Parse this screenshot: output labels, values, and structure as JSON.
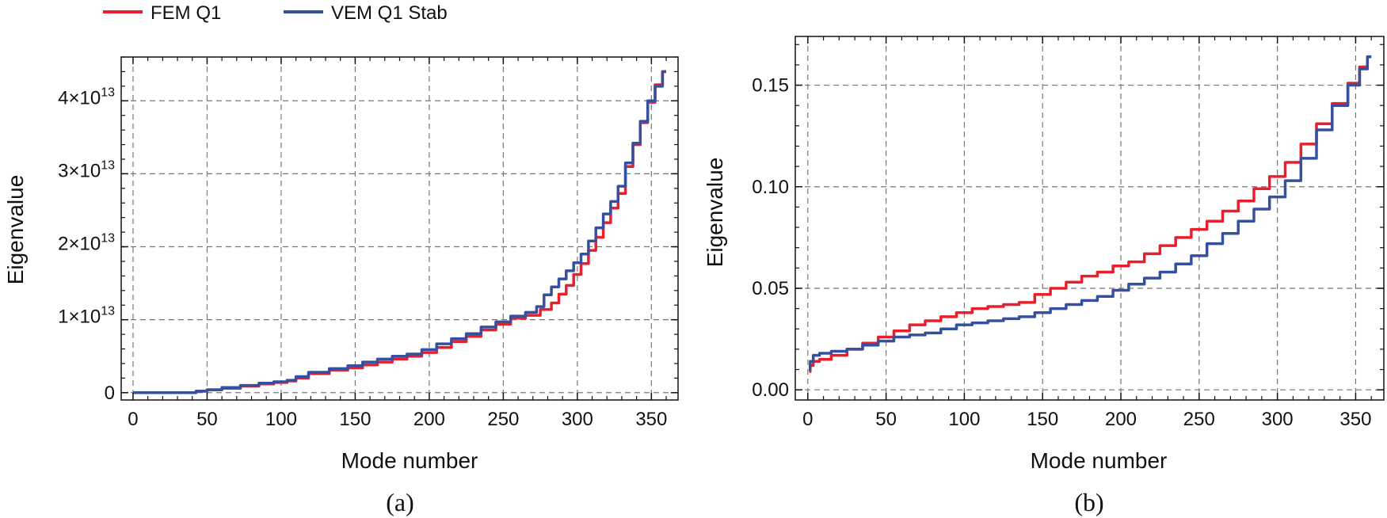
{
  "legend": [
    {
      "label": "FEM Q1",
      "color": "#e8202d"
    },
    {
      "label": "VEM Q1 Stab",
      "color": "#3650a0"
    }
  ],
  "chart_data": [
    {
      "type": "line",
      "panel": "a",
      "caption": "(a)",
      "xlabel": "Mode number",
      "ylabel": "Eigenvalue",
      "xlim": [
        -8,
        368
      ],
      "ylim": [
        -1000000000000.0,
        46000000000000.0
      ],
      "grid": true,
      "x_ticks": [
        {
          "value": 0,
          "label": "0"
        },
        {
          "value": 50,
          "label": "50"
        },
        {
          "value": 100,
          "label": "100"
        },
        {
          "value": 150,
          "label": "150"
        },
        {
          "value": 200,
          "label": "200"
        },
        {
          "value": 250,
          "label": "250"
        },
        {
          "value": 300,
          "label": "300"
        },
        {
          "value": 350,
          "label": "350"
        }
      ],
      "y_ticks": [
        {
          "value": 0,
          "label": "0",
          "mantissa": "",
          "exponent": ""
        },
        {
          "value": 10000000000000.0,
          "label": "1×10^13",
          "mantissa": "1×10",
          "exponent": "13"
        },
        {
          "value": 20000000000000.0,
          "label": "2×10^13",
          "mantissa": "2×10",
          "exponent": "13"
        },
        {
          "value": 30000000000000.0,
          "label": "3×10^13",
          "mantissa": "3×10",
          "exponent": "13"
        },
        {
          "value": 40000000000000.0,
          "label": "4×10^13",
          "mantissa": "4×10",
          "exponent": "13"
        }
      ],
      "series": [
        {
          "name": "FEM Q1",
          "color": "#e8202d",
          "x": [
            0,
            20,
            40,
            45,
            55,
            65,
            80,
            90,
            100,
            108,
            112,
            125,
            140,
            150,
            160,
            170,
            180,
            190,
            200,
            210,
            220,
            230,
            240,
            250,
            260,
            270,
            280,
            285,
            290,
            295,
            300,
            305,
            310,
            315,
            320,
            325,
            330,
            335,
            340,
            345,
            350,
            355,
            360
          ],
          "y": [
            0,
            0,
            0,
            200000000000.0,
            400000000000.0,
            600000000000.0,
            900000000000.0,
            1200000000000.0,
            1400000000000.0,
            1600000000000.0,
            2000000000000.0,
            2600000000000.0,
            3100000000000.0,
            3400000000000.0,
            3800000000000.0,
            4200000000000.0,
            4600000000000.0,
            5000000000000.0,
            5500000000000.0,
            6200000000000.0,
            7000000000000.0,
            7700000000000.0,
            8600000000000.0,
            9400000000000.0,
            10200000000000.0,
            10600000000000.0,
            11400000000000.0,
            12300000000000.0,
            13500000000000.0,
            14700000000000.0,
            16200000000000.0,
            17700000000000.0,
            19500000000000.0,
            21300000000000.0,
            23300000000000.0,
            25300000000000.0,
            27300000000000.0,
            31000000000000.0,
            34000000000000.0,
            37000000000000.0,
            39800000000000.0,
            42200000000000.0,
            44000000000000.0
          ]
        },
        {
          "name": "VEM Q1 Stab",
          "color": "#3650a0",
          "x": [
            0,
            20,
            40,
            45,
            55,
            65,
            80,
            90,
            100,
            108,
            112,
            125,
            140,
            150,
            160,
            170,
            180,
            190,
            200,
            210,
            220,
            230,
            240,
            250,
            260,
            270,
            275,
            280,
            285,
            290,
            295,
            300,
            305,
            310,
            315,
            320,
            325,
            330,
            335,
            340,
            345,
            350,
            355,
            360
          ],
          "y": [
            0,
            0,
            0,
            200000000000.0,
            400000000000.0,
            700000000000.0,
            1000000000000.0,
            1300000000000.0,
            1500000000000.0,
            1700000000000.0,
            2200000000000.0,
            2800000000000.0,
            3300000000000.0,
            3700000000000.0,
            4200000000000.0,
            4600000000000.0,
            5000000000000.0,
            5300000000000.0,
            5900000000000.0,
            6700000000000.0,
            7400000000000.0,
            8100000000000.0,
            9000000000000.0,
            9700000000000.0,
            10500000000000.0,
            11000000000000.0,
            11800000000000.0,
            13400000000000.0,
            14500000000000.0,
            15600000000000.0,
            16700000000000.0,
            17800000000000.0,
            19000000000000.0,
            20800000000000.0,
            22600000000000.0,
            24500000000000.0,
            26200000000000.0,
            28300000000000.0,
            31500000000000.0,
            34200000000000.0,
            37200000000000.0,
            40000000000000.0,
            42000000000000.0,
            44000000000000.0
          ]
        }
      ]
    },
    {
      "type": "line",
      "panel": "b",
      "caption": "(b)",
      "xlabel": "Mode number",
      "ylabel": "Eigenvalue",
      "xlim": [
        -8,
        368
      ],
      "ylim": [
        -0.005,
        0.174
      ],
      "grid": true,
      "x_ticks": [
        {
          "value": 0,
          "label": "0"
        },
        {
          "value": 50,
          "label": "50"
        },
        {
          "value": 100,
          "label": "100"
        },
        {
          "value": 150,
          "label": "150"
        },
        {
          "value": 200,
          "label": "200"
        },
        {
          "value": 250,
          "label": "250"
        },
        {
          "value": 300,
          "label": "300"
        },
        {
          "value": 350,
          "label": "350"
        }
      ],
      "y_ticks": [
        {
          "value": 0.0,
          "label": "0.00"
        },
        {
          "value": 0.05,
          "label": "0.05"
        },
        {
          "value": 0.1,
          "label": "0.10"
        },
        {
          "value": 0.15,
          "label": "0.15"
        }
      ],
      "series": [
        {
          "name": "FEM Q1",
          "color": "#e8202d",
          "x": [
            1,
            2,
            5,
            10,
            20,
            30,
            40,
            50,
            60,
            70,
            80,
            90,
            100,
            110,
            120,
            130,
            140,
            150,
            160,
            170,
            180,
            190,
            200,
            210,
            220,
            230,
            240,
            250,
            260,
            270,
            280,
            290,
            300,
            310,
            320,
            330,
            340,
            350,
            355,
            360
          ],
          "y": [
            0.009,
            0.012,
            0.014,
            0.015,
            0.017,
            0.02,
            0.023,
            0.026,
            0.029,
            0.032,
            0.034,
            0.036,
            0.038,
            0.04,
            0.041,
            0.042,
            0.043,
            0.047,
            0.05,
            0.053,
            0.056,
            0.058,
            0.061,
            0.063,
            0.067,
            0.071,
            0.075,
            0.079,
            0.083,
            0.088,
            0.093,
            0.099,
            0.105,
            0.112,
            0.121,
            0.131,
            0.141,
            0.151,
            0.159,
            0.164
          ]
        },
        {
          "name": "VEM Q1 Stab",
          "color": "#3650a0",
          "x": [
            1,
            2,
            5,
            10,
            20,
            30,
            40,
            50,
            60,
            70,
            80,
            90,
            100,
            110,
            120,
            130,
            140,
            150,
            160,
            170,
            180,
            190,
            200,
            210,
            220,
            230,
            240,
            250,
            260,
            270,
            280,
            290,
            300,
            310,
            320,
            330,
            340,
            350,
            355,
            360
          ],
          "y": [
            0.01,
            0.014,
            0.017,
            0.018,
            0.019,
            0.02,
            0.022,
            0.024,
            0.026,
            0.027,
            0.028,
            0.03,
            0.032,
            0.033,
            0.034,
            0.035,
            0.036,
            0.038,
            0.04,
            0.042,
            0.044,
            0.046,
            0.049,
            0.052,
            0.055,
            0.058,
            0.062,
            0.066,
            0.072,
            0.077,
            0.083,
            0.089,
            0.095,
            0.103,
            0.114,
            0.128,
            0.14,
            0.15,
            0.158,
            0.164
          ]
        }
      ]
    }
  ]
}
